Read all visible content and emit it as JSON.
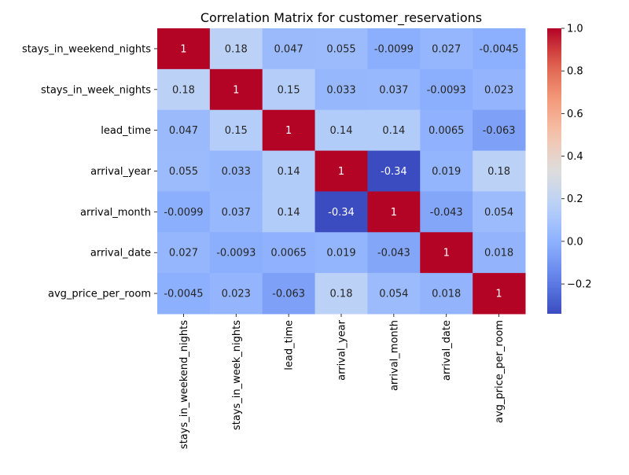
{
  "chart_data": {
    "type": "heatmap",
    "title": "Correlation Matrix for customer_reservations",
    "xlabel": "",
    "ylabel": "",
    "colormap": "coolwarm",
    "row_labels": [
      "stays_in_weekend_nights",
      "stays_in_week_nights",
      "lead_time",
      "arrival_year",
      "arrival_month",
      "arrival_date",
      "avg_price_per_room"
    ],
    "col_labels": [
      "stays_in_weekend_nights",
      "stays_in_week_nights",
      "lead_time",
      "arrival_year",
      "arrival_month",
      "arrival_date",
      "avg_price_per_room"
    ],
    "values": [
      [
        1,
        0.18,
        0.047,
        0.055,
        -0.0099,
        0.027,
        -0.0045
      ],
      [
        0.18,
        1,
        0.15,
        0.033,
        0.037,
        -0.0093,
        0.023
      ],
      [
        0.047,
        0.15,
        1,
        0.14,
        0.14,
        0.0065,
        -0.063
      ],
      [
        0.055,
        0.033,
        0.14,
        1,
        -0.34,
        0.019,
        0.18
      ],
      [
        -0.0099,
        0.037,
        0.14,
        -0.34,
        1,
        -0.043,
        0.054
      ],
      [
        0.027,
        -0.0093,
        0.0065,
        0.019,
        -0.043,
        1,
        0.018
      ],
      [
        -0.0045,
        0.023,
        -0.063,
        0.18,
        0.054,
        0.018,
        1
      ]
    ],
    "annotations": [
      [
        "1",
        "0.18",
        "0.047",
        "0.055",
        "-0.0099",
        "0.027",
        "-0.0045"
      ],
      [
        "0.18",
        "1",
        "0.15",
        "0.033",
        "0.037",
        "-0.0093",
        "0.023"
      ],
      [
        "0.047",
        "0.15",
        "1",
        "0.14",
        "0.14",
        "0.0065",
        "-0.063"
      ],
      [
        "0.055",
        "0.033",
        "0.14",
        "1",
        "-0.34",
        "0.019",
        "0.18"
      ],
      [
        "-0.0099",
        "0.037",
        "0.14",
        "-0.34",
        "1",
        "-0.043",
        "0.054"
      ],
      [
        "0.027",
        "-0.0093",
        "0.0065",
        "0.019",
        "-0.043",
        "1",
        "0.018"
      ],
      [
        "-0.0045",
        "0.023",
        "-0.063",
        "0.18",
        "0.054",
        "0.018",
        "1"
      ]
    ],
    "vmin": -0.34,
    "vmax": 1.0,
    "colorbar_ticks": [
      -0.2,
      0.0,
      0.2,
      0.4,
      0.6,
      0.8,
      1.0
    ],
    "colorbar_tick_labels": [
      "−0.2",
      "0.0",
      "0.2",
      "0.4",
      "0.6",
      "0.8",
      "1.0"
    ],
    "grid": false,
    "legend": "colorbar-right"
  }
}
